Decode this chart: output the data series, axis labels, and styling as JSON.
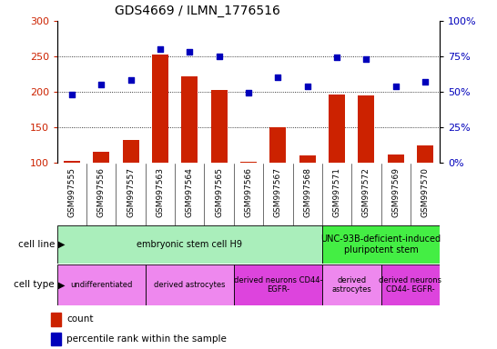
{
  "title": "GDS4669 / ILMN_1776516",
  "samples": [
    "GSM997555",
    "GSM997556",
    "GSM997557",
    "GSM997563",
    "GSM997564",
    "GSM997565",
    "GSM997566",
    "GSM997567",
    "GSM997568",
    "GSM997571",
    "GSM997572",
    "GSM997569",
    "GSM997570"
  ],
  "counts": [
    102,
    115,
    132,
    253,
    222,
    202,
    101,
    150,
    110,
    196,
    195,
    111,
    124
  ],
  "percentiles": [
    48,
    55,
    58,
    80,
    78,
    75,
    49,
    60,
    54,
    74,
    73,
    54,
    57
  ],
  "bar_color": "#cc2200",
  "dot_color": "#0000bb",
  "ylim_left": [
    100,
    300
  ],
  "ylim_right": [
    0,
    100
  ],
  "yticks_left": [
    100,
    150,
    200,
    250,
    300
  ],
  "yticks_right": [
    0,
    25,
    50,
    75,
    100
  ],
  "cell_line_groups": [
    {
      "label": "embryonic stem cell H9",
      "start": 0,
      "end": 9,
      "color": "#aaeebb"
    },
    {
      "label": "UNC-93B-deficient-induced\npluripotent stem",
      "start": 9,
      "end": 13,
      "color": "#44ee44"
    }
  ],
  "cell_type_groups": [
    {
      "label": "undifferentiated",
      "start": 0,
      "end": 3,
      "color": "#ee88ee"
    },
    {
      "label": "derived astrocytes",
      "start": 3,
      "end": 6,
      "color": "#ee88ee"
    },
    {
      "label": "derived neurons CD44-\nEGFR-",
      "start": 6,
      "end": 9,
      "color": "#dd44dd"
    },
    {
      "label": "derived\nastrocytes",
      "start": 9,
      "end": 11,
      "color": "#ee88ee"
    },
    {
      "label": "derived neurons\nCD44- EGFR-",
      "start": 11,
      "end": 13,
      "color": "#dd44dd"
    }
  ],
  "tick_bg_color": "#dddddd",
  "background_color": "#ffffff",
  "left_label_color": "#cc2200",
  "right_label_color": "#0000bb"
}
